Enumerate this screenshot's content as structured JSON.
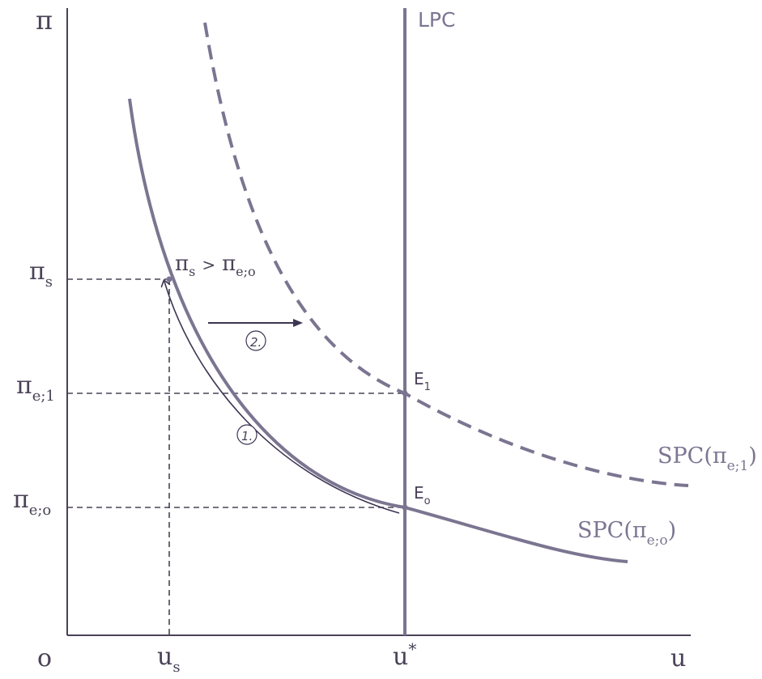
{
  "colors": {
    "axis": "#4a4257",
    "curve": "#7c7591",
    "arrow": "#3d3552",
    "guide": "#4a4257"
  },
  "axes": {
    "y_label": "π",
    "x_label": "u",
    "origin_label": "o"
  },
  "ticks": {
    "x": [
      {
        "id": "us",
        "base": "u",
        "sub": "s"
      },
      {
        "id": "ustar",
        "base": "u",
        "sup": "*"
      }
    ],
    "y": [
      {
        "id": "pi_s",
        "base": "π",
        "sub": "s"
      },
      {
        "id": "pi_e1",
        "base": "π",
        "sub": "e;1"
      },
      {
        "id": "pi_e0",
        "base": "π",
        "sub": "e;o"
      }
    ]
  },
  "curves": {
    "lpc_label": "LPC",
    "spc0_label": {
      "prefix": "SPC(",
      "base": "π",
      "sub": "e;o",
      "suffix": ")"
    },
    "spc1_label": {
      "prefix": "SPC(",
      "base": "π",
      "sub": "e;1",
      "suffix": ")"
    }
  },
  "points": {
    "e0": {
      "base": "E",
      "sub": "o"
    },
    "e1": {
      "base": "E",
      "sub": "1"
    },
    "annotation": {
      "base1": "π",
      "sub1": "s",
      "op": ">",
      "base2": "π",
      "sub2": "e;o"
    }
  },
  "steps": {
    "step1": "1.",
    "step2": "2."
  }
}
